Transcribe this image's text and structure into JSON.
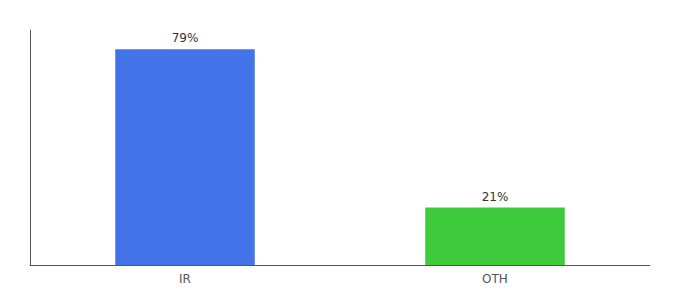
{
  "chart_data": {
    "type": "bar",
    "categories": [
      "IR",
      "OTH"
    ],
    "values": [
      79,
      21
    ],
    "colors": [
      "#4472e8",
      "#3dca3d"
    ],
    "value_labels": [
      "79%",
      "21%"
    ],
    "data_labels": true,
    "ylim": [
      0,
      86
    ],
    "tick_labels": "x",
    "grid": false
  }
}
